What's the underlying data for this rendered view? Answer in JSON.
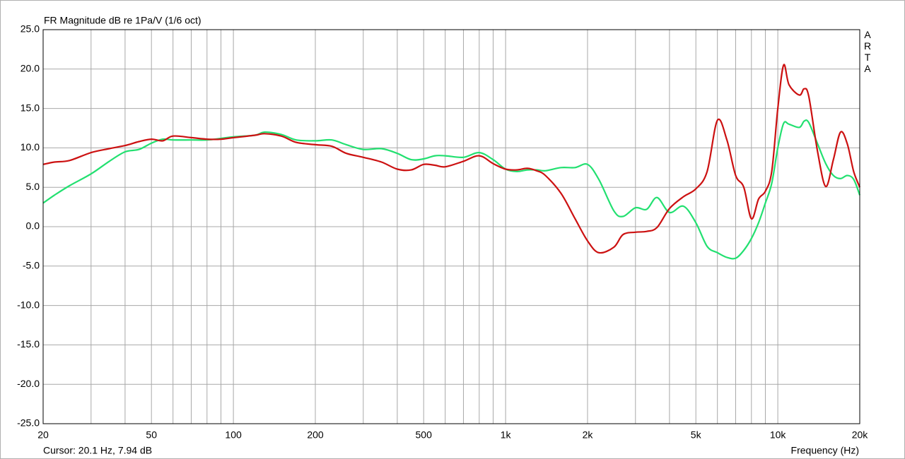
{
  "chart_data": {
    "type": "line",
    "title": "FR Magnitude dB re 1Pa/V (1/6 oct)",
    "watermark": "ARTA",
    "cursor_readout": "Cursor: 20.1 Hz, 7.94 dB",
    "x_label": "Frequency (Hz)",
    "x_scale": "log",
    "grid": true,
    "xlim": [
      20,
      20000
    ],
    "ylim": [
      -25,
      25
    ],
    "xticks": [
      20,
      50,
      100,
      200,
      500,
      {
        "value": 1000,
        "label": "1k"
      },
      {
        "value": 2000,
        "label": "2k"
      },
      {
        "value": 5000,
        "label": "5k"
      },
      {
        "value": 10000,
        "label": "10k"
      },
      {
        "value": 20000,
        "label": "20k"
      }
    ],
    "xminor": [
      30,
      40,
      60,
      70,
      80,
      90,
      300,
      400,
      600,
      700,
      800,
      900,
      3000,
      4000,
      6000,
      7000,
      8000,
      9000
    ],
    "yticks": [
      {
        "value": 25,
        "label": "25.0"
      },
      {
        "value": 20,
        "label": "20.0"
      },
      {
        "value": 15,
        "label": "15.0"
      },
      {
        "value": 10,
        "label": "10.0"
      },
      {
        "value": 5,
        "label": "5.0"
      },
      {
        "value": 0,
        "label": "0.0"
      },
      {
        "value": -5,
        "label": "-5.0"
      },
      {
        "value": -10,
        "label": "-10.0"
      },
      {
        "value": -15,
        "label": "-15.0"
      },
      {
        "value": -20,
        "label": "-20.0"
      },
      {
        "value": -25,
        "label": "-25.0"
      }
    ],
    "x": [
      20,
      22,
      25,
      30,
      35,
      40,
      45,
      50,
      55,
      60,
      70,
      80,
      90,
      100,
      120,
      130,
      150,
      170,
      200,
      230,
      260,
      300,
      350,
      400,
      450,
      500,
      550,
      600,
      700,
      800,
      900,
      1000,
      1100,
      1200,
      1300,
      1400,
      1600,
      1800,
      2000,
      2200,
      2500,
      2700,
      3000,
      3300,
      3600,
      4000,
      4500,
      5000,
      5500,
      6000,
      6500,
      7000,
      7500,
      8000,
      8500,
      9000,
      9500,
      10000,
      10500,
      11000,
      12000,
      12500,
      13000,
      14000,
      15000,
      16000,
      17000,
      18000,
      19000,
      20000
    ],
    "series": [
      {
        "color": "#22e070",
        "values": [
          3.0,
          4.0,
          5.2,
          6.7,
          8.3,
          9.5,
          9.8,
          10.6,
          11.1,
          11.0,
          11.0,
          11.0,
          11.2,
          11.4,
          11.6,
          12.0,
          11.7,
          11.0,
          10.9,
          11.0,
          10.4,
          9.8,
          9.9,
          9.3,
          8.5,
          8.6,
          9.0,
          9.0,
          8.8,
          9.4,
          8.5,
          7.3,
          7.0,
          7.2,
          7.2,
          7.1,
          7.5,
          7.5,
          7.9,
          6.0,
          2.0,
          1.3,
          2.4,
          2.2,
          3.7,
          1.8,
          2.6,
          0.5,
          -2.5,
          -3.3,
          -3.9,
          -4.0,
          -3.0,
          -1.5,
          0.5,
          3.0,
          5.5,
          10.0,
          13.1,
          13.0,
          12.6,
          13.4,
          13.2,
          10.5,
          8.0,
          6.5,
          6.1,
          6.5,
          6.0,
          4.0
        ]
      },
      {
        "color": "#cc1111",
        "values": [
          7.9,
          8.2,
          8.4,
          9.4,
          9.9,
          10.3,
          10.8,
          11.1,
          10.9,
          11.5,
          11.3,
          11.1,
          11.1,
          11.3,
          11.6,
          11.8,
          11.5,
          10.7,
          10.4,
          10.2,
          9.3,
          8.8,
          8.2,
          7.3,
          7.2,
          7.9,
          7.8,
          7.6,
          8.3,
          9.0,
          8.0,
          7.3,
          7.2,
          7.4,
          7.1,
          6.5,
          4.2,
          1.0,
          -1.8,
          -3.3,
          -2.6,
          -1.0,
          -0.7,
          -0.6,
          -0.1,
          2.3,
          3.8,
          4.8,
          7.0,
          13.5,
          11.0,
          6.5,
          5.0,
          1.0,
          3.5,
          4.5,
          7.0,
          15.0,
          20.5,
          18.0,
          16.7,
          17.5,
          16.5,
          9.5,
          5.1,
          8.5,
          12.0,
          10.5,
          7.0,
          5.0
        ]
      }
    ]
  }
}
